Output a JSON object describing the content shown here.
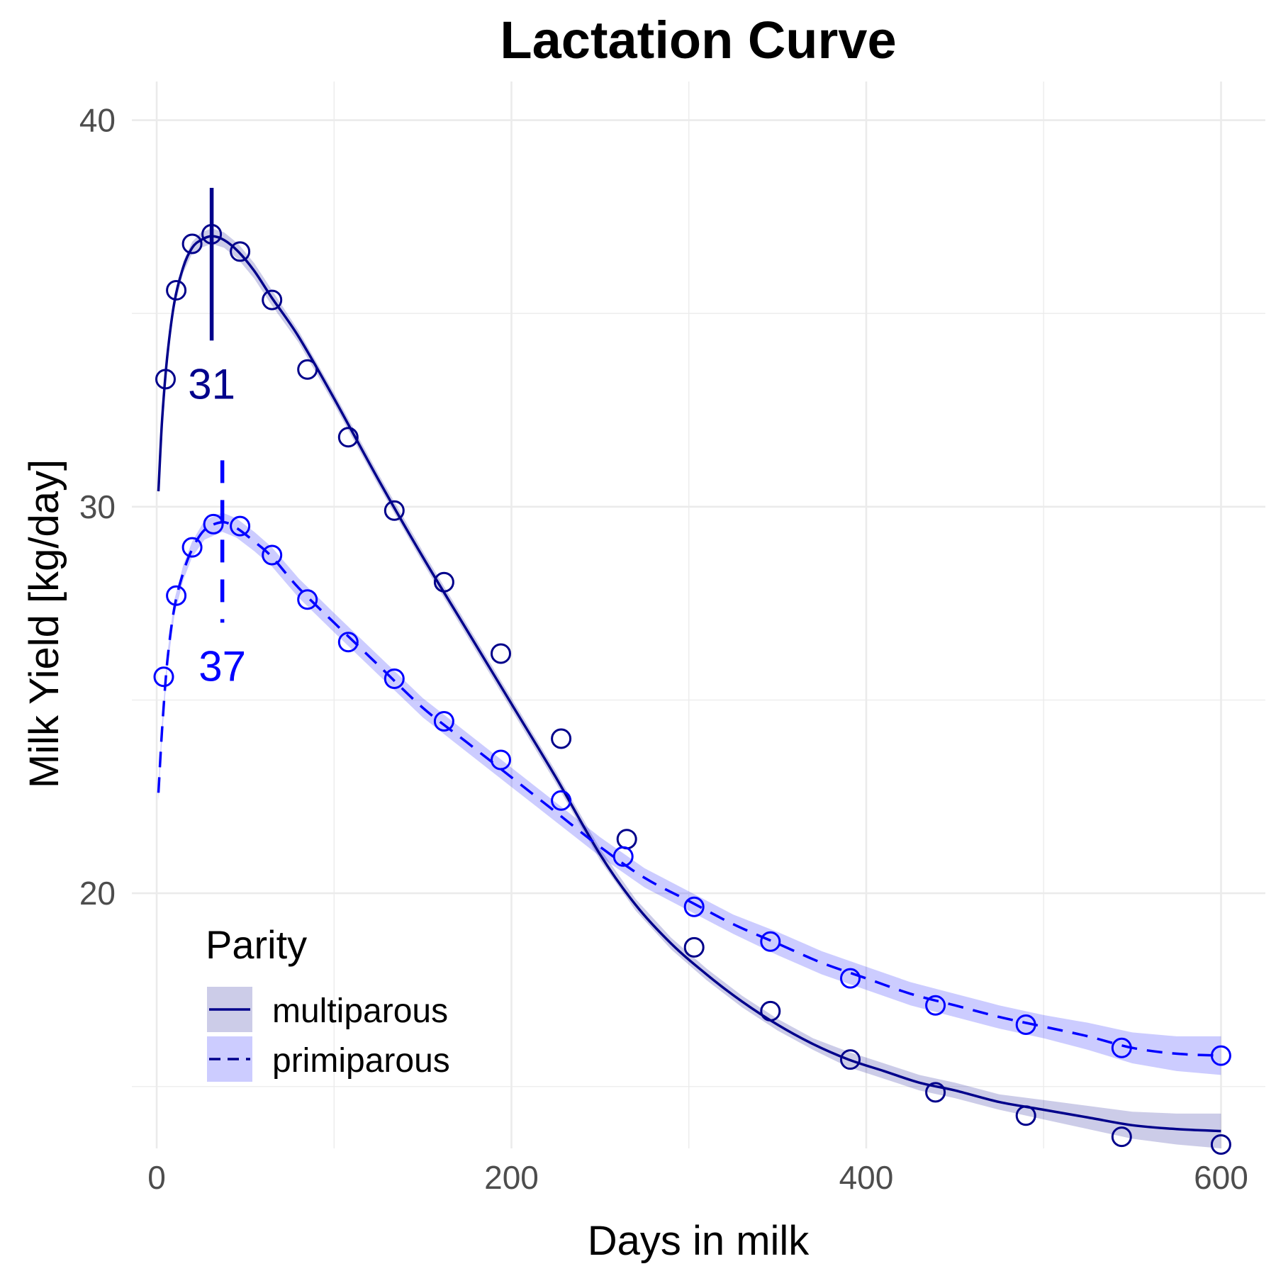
{
  "chart_data": {
    "type": "line",
    "title": "Lactation Curve",
    "xlabel": "Days in milk",
    "ylabel": "Milk Yield [kg/day]",
    "xlim": [
      -14,
      625
    ],
    "ylim": [
      13.4,
      41.0
    ],
    "x_ticks": [
      0,
      200,
      400,
      600
    ],
    "x_minor_ticks": [
      100,
      300,
      500
    ],
    "y_ticks": [
      20,
      30,
      40
    ],
    "y_minor_ticks": [
      15,
      25,
      35
    ],
    "x_tick_labels": [
      "0",
      "200",
      "400",
      "600"
    ],
    "y_tick_labels": [
      "20",
      "30",
      "40"
    ],
    "grid": true,
    "legend": {
      "title": "Parity",
      "position": "bottom-left",
      "entries": [
        "multiparous",
        "primiparous"
      ]
    },
    "series": [
      {
        "name": "multiparous",
        "color": "#00008B",
        "ribbon_color": "#00008B",
        "line_style": "solid",
        "fitted": {
          "x": [
            1,
            3,
            6,
            10,
            15,
            20,
            25,
            31,
            38,
            46,
            55,
            65,
            80,
            100,
            125,
            150,
            175,
            200,
            225,
            250,
            270,
            290,
            310,
            330,
            350,
            370,
            390,
            410,
            430,
            450,
            475,
            500,
            525,
            550,
            575,
            600
          ],
          "y": [
            30.4,
            32.2,
            33.9,
            35.3,
            36.2,
            36.7,
            36.9,
            37.0,
            36.9,
            36.6,
            36.1,
            35.4,
            34.4,
            32.8,
            30.7,
            28.7,
            26.8,
            24.9,
            23.0,
            21.0,
            19.7,
            18.7,
            17.9,
            17.2,
            16.6,
            16.1,
            15.7,
            15.4,
            15.1,
            14.9,
            14.6,
            14.4,
            14.2,
            14.0,
            13.9,
            13.85
          ],
          "ribbon_halfwidth": [
            0.15,
            0.15,
            0.15,
            0.15,
            0.15,
            0.15,
            0.2,
            0.2,
            0.2,
            0.2,
            0.2,
            0.2,
            0.15,
            0.15,
            0.15,
            0.15,
            0.15,
            0.15,
            0.15,
            0.15,
            0.15,
            0.15,
            0.15,
            0.15,
            0.15,
            0.15,
            0.2,
            0.2,
            0.2,
            0.2,
            0.2,
            0.25,
            0.3,
            0.35,
            0.4,
            0.45
          ]
        },
        "points": {
          "x": [
            5,
            11,
            20,
            31,
            47,
            65,
            85,
            108,
            134,
            162,
            194,
            228,
            265,
            303,
            346,
            391,
            439,
            490,
            544,
            600
          ],
          "y": [
            33.3,
            35.6,
            36.8,
            37.05,
            36.6,
            35.35,
            33.55,
            31.8,
            29.9,
            28.05,
            26.2,
            24.0,
            21.4,
            18.6,
            16.95,
            15.7,
            14.85,
            14.25,
            13.7,
            13.5
          ]
        },
        "peak": {
          "x": 31,
          "label": "31",
          "y_top": 38.25,
          "y_bottom": 34.3
        }
      },
      {
        "name": "primiparous",
        "color": "#0000FF",
        "ribbon_color": "#0000FF",
        "line_style": "dashed",
        "fitted": {
          "x": [
            1,
            3,
            6,
            10,
            15,
            20,
            27,
            37,
            45,
            55,
            65,
            80,
            100,
            125,
            150,
            175,
            200,
            225,
            250,
            275,
            300,
            325,
            350,
            375,
            400,
            425,
            450,
            475,
            500,
            525,
            550,
            575,
            600
          ],
          "y": [
            22.6,
            24.2,
            26.0,
            27.4,
            28.3,
            28.9,
            29.4,
            29.6,
            29.45,
            29.1,
            28.7,
            27.9,
            27.0,
            25.9,
            24.8,
            23.9,
            23.0,
            22.1,
            21.2,
            20.4,
            19.8,
            19.2,
            18.7,
            18.2,
            17.8,
            17.4,
            17.1,
            16.8,
            16.55,
            16.3,
            16.0,
            15.85,
            15.8
          ],
          "ribbon_halfwidth": [
            0.2,
            0.2,
            0.2,
            0.2,
            0.2,
            0.2,
            0.25,
            0.25,
            0.25,
            0.25,
            0.25,
            0.25,
            0.25,
            0.25,
            0.25,
            0.25,
            0.25,
            0.25,
            0.25,
            0.25,
            0.25,
            0.25,
            0.3,
            0.3,
            0.3,
            0.3,
            0.3,
            0.3,
            0.3,
            0.35,
            0.4,
            0.45,
            0.5
          ]
        },
        "points": {
          "x": [
            4,
            11,
            20,
            32,
            47,
            65,
            85,
            108,
            134,
            162,
            194,
            228,
            263,
            303,
            346,
            391,
            439,
            490,
            544,
            600
          ],
          "y": [
            25.6,
            27.7,
            28.95,
            29.55,
            29.5,
            28.75,
            27.6,
            26.5,
            25.55,
            24.45,
            23.45,
            22.4,
            20.95,
            19.65,
            18.75,
            17.8,
            17.1,
            16.6,
            16.0,
            15.8
          ]
        },
        "peak": {
          "x": 37,
          "label": "37",
          "y_top": 31.2,
          "y_bottom": 27.0
        }
      }
    ]
  }
}
